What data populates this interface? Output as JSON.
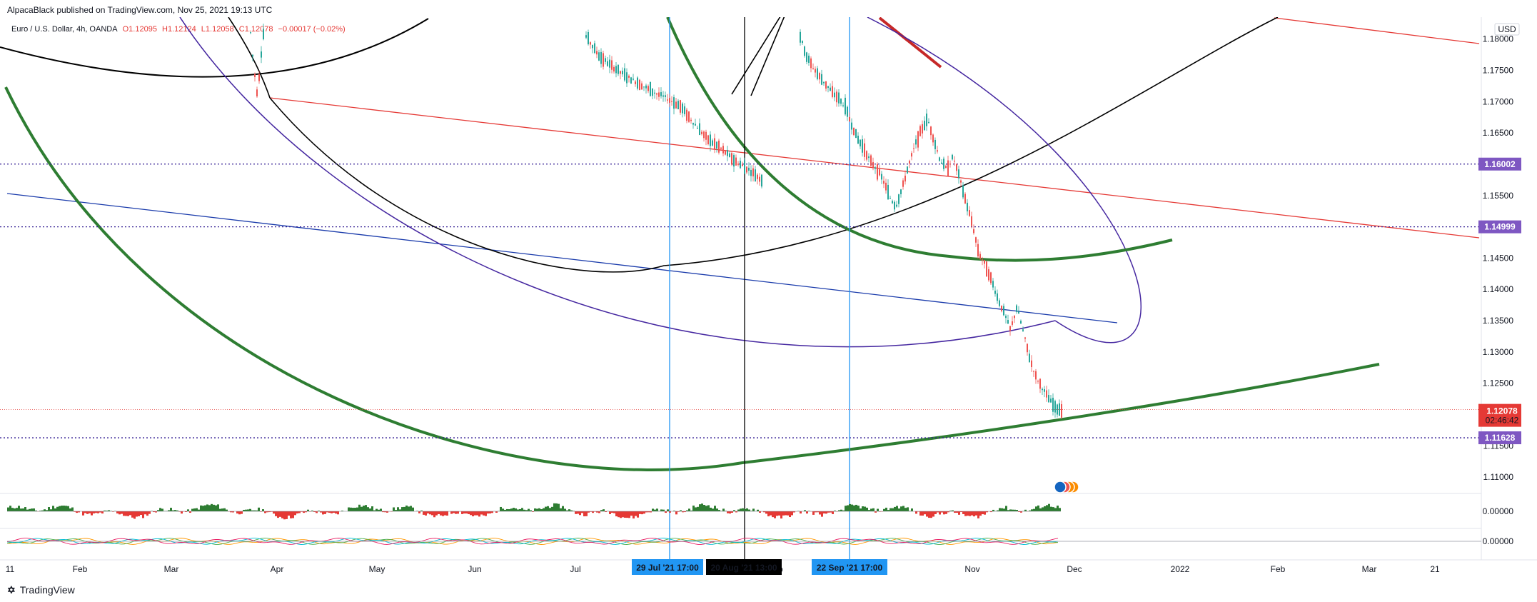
{
  "publisher": "AlpacaBlack published on TradingView.com, Nov 25, 2021 19:13 UTC",
  "legend": {
    "symbol": "Euro / U.S. Dollar, 4h, OANDA",
    "open": "O1.12095",
    "high": "H1.12124",
    "low": "L1.12058",
    "close": "C1.12078",
    "change": "−0.00017 (−0.02%)"
  },
  "currency": "USD",
  "footer": {
    "brand": "TradingView"
  },
  "colors": {
    "up": "#26a69a",
    "down": "#ef5350",
    "purple": "#7e57c2",
    "current": "#e53935"
  },
  "chart_data": {
    "type": "line",
    "symbol": "EURUSD",
    "timeframe": "4h",
    "ylim": [
      1.1075,
      1.1835
    ],
    "y_ticks": [
      "1.18000",
      "1.17500",
      "1.17000",
      "1.16500",
      "1.16000",
      "1.15500",
      "1.15000",
      "1.14500",
      "1.14000",
      "1.13500",
      "1.13000",
      "1.12500",
      "1.12000",
      "1.11500",
      "1.11000"
    ],
    "x_ticks": [
      "11",
      "Feb",
      "Mar",
      "Apr",
      "May",
      "Jun",
      "Jul",
      "Aug",
      "Sep",
      "Oct",
      "Nov",
      "Dec",
      "2022",
      "Feb",
      "Mar",
      "21"
    ],
    "price_labels": [
      {
        "value": "1.16002",
        "price": 1.16002,
        "color": "#7e57c2"
      },
      {
        "value": "1.14999",
        "price": 1.14999,
        "color": "#7e57c2"
      },
      {
        "value": "1.11628",
        "price": 1.11628,
        "color": "#7e57c2"
      }
    ],
    "current_price": {
      "value": "1.12078",
      "price": 1.12078,
      "countdown": "02:46:42"
    },
    "vertical_markers": [
      {
        "label": "29 Jul '21   17:00",
        "color": "#2196f3"
      },
      {
        "label": "20 Aug '21   13:00",
        "color": "#000000"
      },
      {
        "label": "22 Sep '21   17:00",
        "color": "#2196f3"
      }
    ],
    "series": [
      {
        "values": [
          1.1804,
          1.1772,
          1.1755,
          1.174,
          1.1728,
          1.1715,
          1.1705,
          1.1692,
          1.1665,
          1.164,
          1.1625,
          1.1605,
          1.1592,
          1.1575,
          1.1548,
          1.1532,
          1.1562,
          1.1598,
          1.163,
          1.1655,
          1.1672,
          1.1638,
          1.1605,
          1.1592,
          1.1612,
          1.1578,
          1.154,
          1.1505,
          1.1458,
          1.144,
          1.1415,
          1.1385,
          1.1362,
          1.1335,
          1.1372,
          1.1332,
          1.129,
          1.126,
          1.1242,
          1.1225,
          1.121,
          1.1208
        ]
      }
    ],
    "indicators": [
      {
        "zero": "0.00000"
      },
      {
        "zero": "0.00000"
      }
    ]
  }
}
